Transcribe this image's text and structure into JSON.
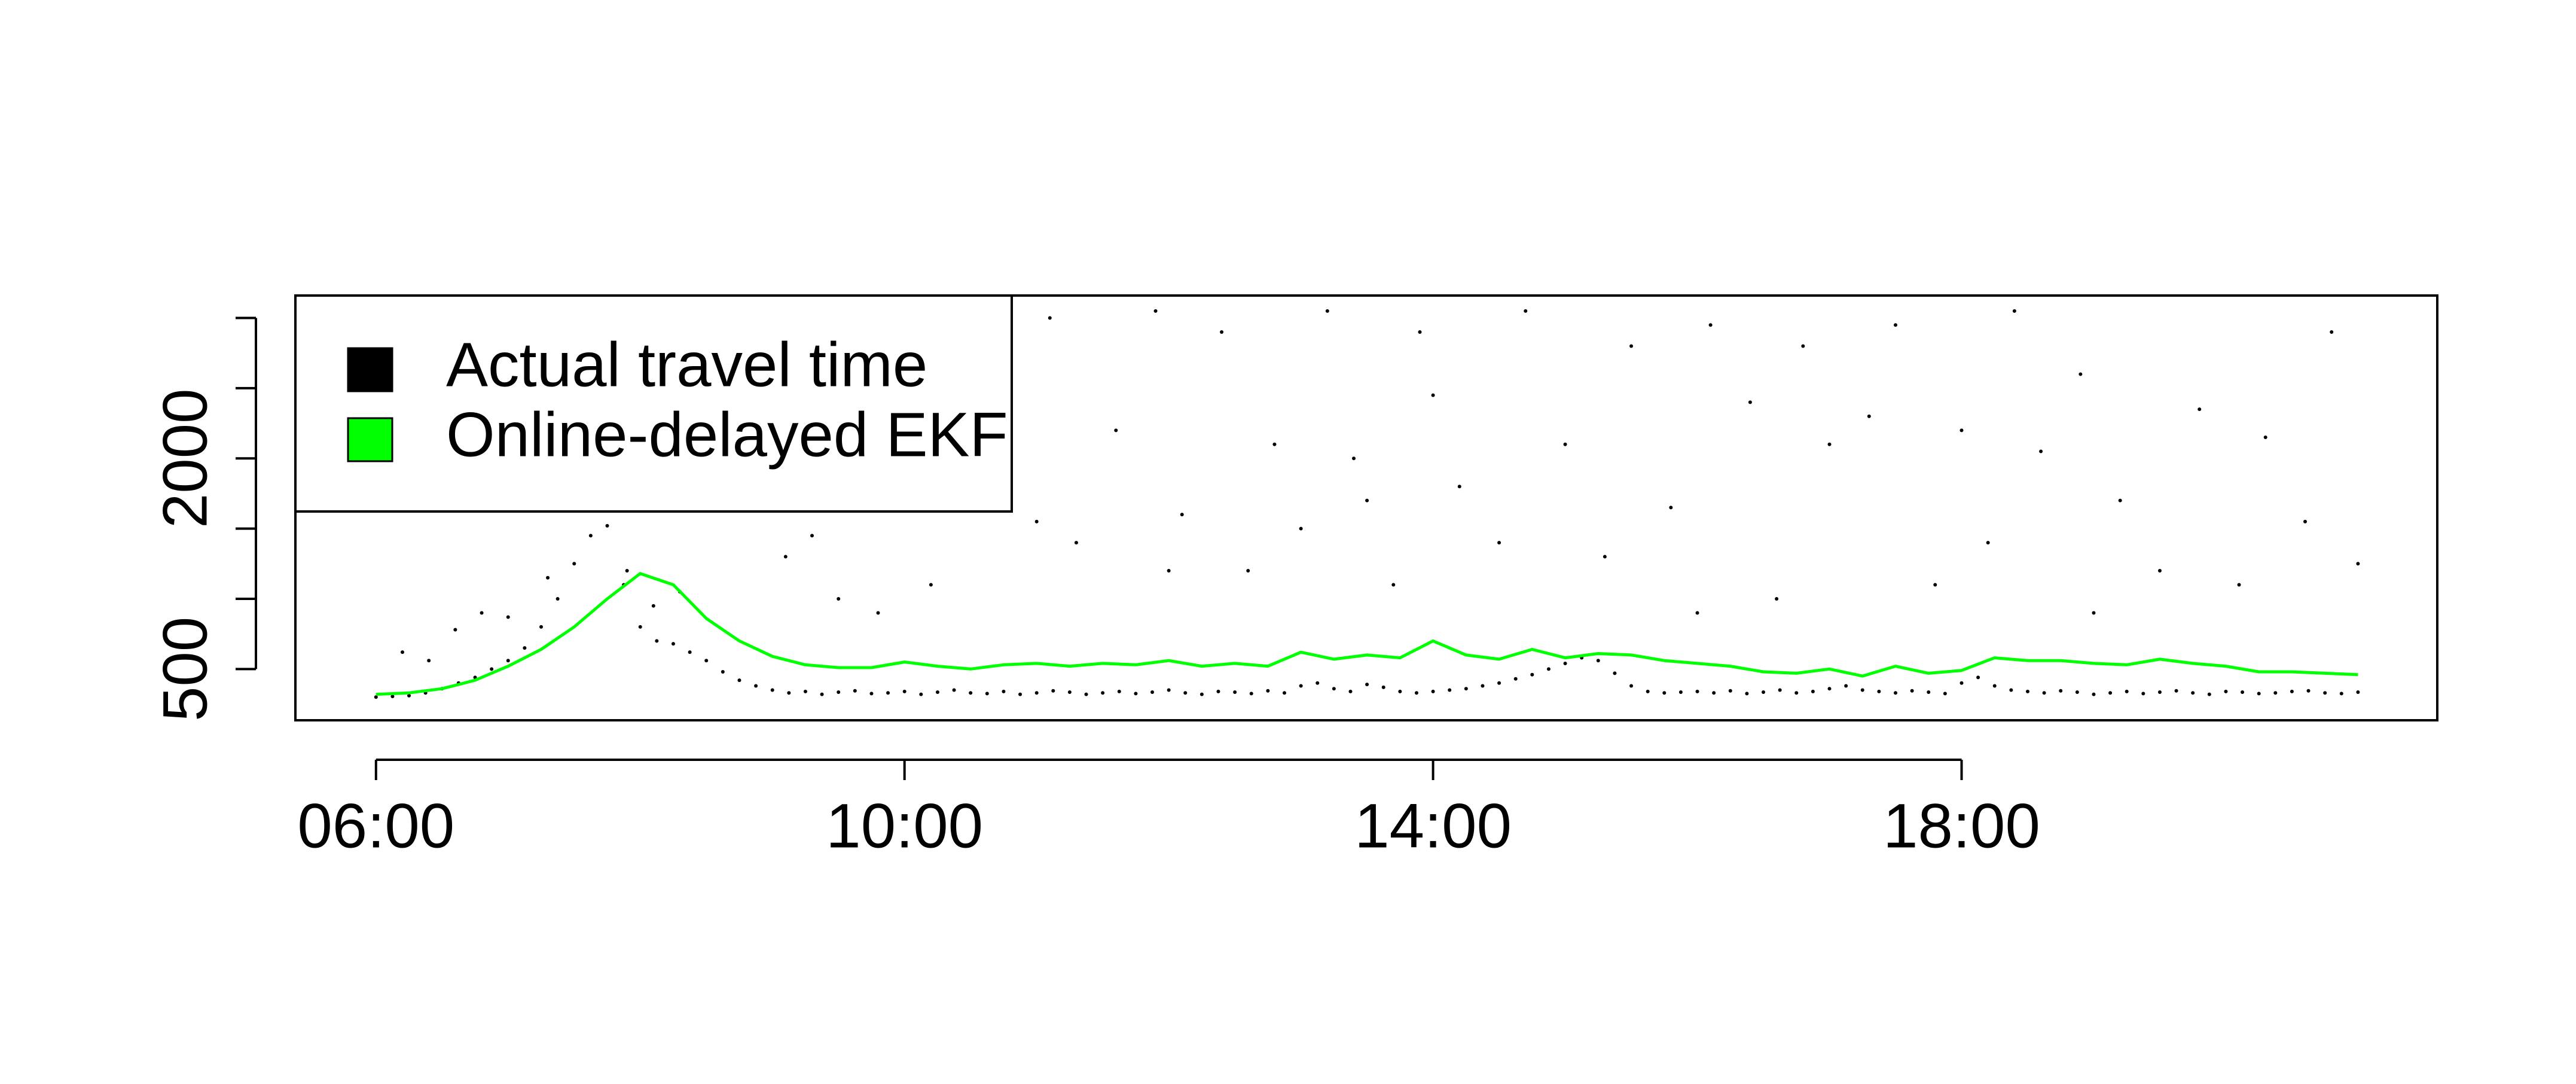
{
  "chart_data": {
    "type": "scatter_line",
    "xlim": [
      5.39,
      21.6
    ],
    "ylim": [
      135,
      3160
    ],
    "xticks": [
      {
        "value": 6,
        "label": "06:00"
      },
      {
        "value": 10,
        "label": "10:00"
      },
      {
        "value": 14,
        "label": "14:00"
      },
      {
        "value": 18,
        "label": "18:00"
      }
    ],
    "yticks": [
      500,
      1000,
      1500,
      2000,
      2500,
      3000
    ],
    "legend": "topleft",
    "series": [
      {
        "name": "Actual travel time",
        "color": "#000000",
        "kind": "points",
        "x": [
          6,
          6.125,
          6.25,
          6.375,
          6.5,
          6.625,
          6.75,
          6.875,
          7,
          7.125,
          7.25,
          7.375,
          7.5,
          7.625,
          7.75,
          7.875,
          8,
          8.125,
          8.25,
          8.375,
          8.5,
          8.625,
          8.75,
          8.875,
          9,
          9.125,
          9.25,
          9.375,
          9.5,
          9.625,
          9.75,
          9.875,
          10,
          10.125,
          10.25,
          10.375,
          10.5,
          10.625,
          10.75,
          10.875,
          11,
          11.125,
          11.25,
          11.375,
          11.5,
          11.625,
          11.75,
          11.875,
          12,
          12.125,
          12.25,
          12.375,
          12.5,
          12.625,
          12.75,
          12.875,
          13,
          13.125,
          13.25,
          13.375,
          13.5,
          13.625,
          13.75,
          13.875,
          14,
          14.125,
          14.25,
          14.375,
          14.5,
          14.625,
          14.75,
          14.875,
          15,
          15.125,
          15.25,
          15.375,
          15.5,
          15.625,
          15.75,
          15.875,
          16,
          16.125,
          16.25,
          16.375,
          16.5,
          16.625,
          16.75,
          16.875,
          17,
          17.125,
          17.25,
          17.375,
          17.5,
          17.625,
          17.75,
          17.875,
          18,
          18.125,
          18.25,
          18.375,
          18.5,
          18.625,
          18.75,
          18.875,
          19,
          19.125,
          19.25,
          19.375,
          19.5,
          19.625,
          19.75,
          19.875,
          20,
          20.125,
          20.25,
          20.375,
          20.5,
          20.625,
          20.75,
          20.875,
          21,
          6.2,
          6.4,
          6.6,
          6.8,
          7.0,
          7.3,
          7.6,
          7.9,
          8.1,
          8.3,
          8.4,
          8.6,
          8.8,
          9.1,
          9.3,
          9.6,
          9.8,
          10.2,
          10.4,
          10.6,
          10.8,
          11.1,
          11.3,
          11.6,
          11.9,
          12.1,
          12.4,
          12.6,
          12.8,
          13.0,
          13.2,
          13.4,
          13.5,
          13.7,
          13.9,
          14.0,
          14.2,
          14.5,
          14.7,
          15.0,
          15.3,
          15.5,
          15.8,
          16.1,
          16.4,
          16.6,
          16.8,
          17.0,
          17.3,
          17.5,
          17.8,
          18.0,
          18.2,
          18.4,
          18.6,
          18.9,
          19.2,
          19.5,
          19.8,
          20.1,
          20.3,
          20.6,
          20.8,
          21.0,
          9.5,
          11.0,
          12.0,
          16.0,
          19.0
        ],
        "values": [
          300,
          305,
          310,
          330,
          360,
          400,
          440,
          500,
          560,
          650,
          800,
          1000,
          1250,
          1450,
          1520,
          1100,
          800,
          700,
          680,
          620,
          560,
          480,
          420,
          380,
          350,
          330,
          340,
          320,
          335,
          345,
          325,
          330,
          340,
          320,
          335,
          350,
          330,
          325,
          340,
          320,
          330,
          345,
          335,
          320,
          330,
          340,
          325,
          335,
          350,
          330,
          320,
          340,
          335,
          325,
          345,
          330,
          380,
          400,
          360,
          340,
          390,
          370,
          340,
          330,
          340,
          350,
          360,
          380,
          400,
          430,
          460,
          500,
          540,
          580,
          560,
          470,
          380,
          340,
          330,
          335,
          340,
          330,
          345,
          325,
          335,
          350,
          330,
          340,
          360,
          380,
          350,
          340,
          330,
          345,
          335,
          325,
          400,
          440,
          380,
          350,
          340,
          330,
          345,
          335,
          320,
          330,
          340,
          325,
          335,
          345,
          330,
          320,
          340,
          335,
          325,
          330,
          340,
          345,
          330,
          325,
          335,
          620,
          560,
          780,
          900,
          870,
          1150,
          1700,
          1200,
          950,
          1050,
          1800,
          2500,
          1650,
          1300,
          1450,
          2300,
          900,
          1100,
          1900,
          2500,
          2900,
          3000,
          1400,
          2200,
          3050,
          1600,
          2900,
          1200,
          2100,
          1500,
          3050,
          2000,
          1700,
          1100,
          2900,
          2450,
          1800,
          1400,
          3050,
          2100,
          1300,
          2800,
          1650,
          2950,
          2400,
          1000,
          2800,
          2100,
          2300,
          2950,
          1100,
          2200,
          1400,
          3050,
          2050,
          2600,
          1700,
          1200,
          2350,
          1100,
          2150,
          1550,
          2900,
          1250,
          1000,
          1550,
          1200,
          900,
          900
        ]
      },
      {
        "name": "Online-delayed EKF",
        "color": "#00ff00",
        "kind": "line",
        "x": [
          6,
          6.25,
          6.5,
          6.75,
          7,
          7.25,
          7.5,
          7.75,
          8,
          8.25,
          8.5,
          8.75,
          9,
          9.25,
          9.5,
          9.75,
          10,
          10.25,
          10.5,
          10.75,
          11,
          11.25,
          11.5,
          11.75,
          12,
          12.25,
          12.5,
          12.75,
          13,
          13.25,
          13.5,
          13.75,
          14,
          14.25,
          14.5,
          14.75,
          15,
          15.25,
          15.5,
          15.75,
          16,
          16.25,
          16.5,
          16.75,
          17,
          17.25,
          17.5,
          17.75,
          18,
          18.25,
          18.5,
          18.75,
          19,
          19.25,
          19.5,
          19.75,
          20,
          20.25,
          20.5,
          20.75,
          21
        ],
        "values": [
          320,
          330,
          360,
          420,
          520,
          640,
          800,
          1000,
          1180,
          1100,
          860,
          700,
          590,
          530,
          510,
          510,
          550,
          520,
          500,
          530,
          540,
          520,
          540,
          530,
          560,
          520,
          540,
          520,
          620,
          570,
          600,
          580,
          700,
          600,
          570,
          640,
          580,
          610,
          600,
          560,
          540,
          520,
          480,
          470,
          500,
          450,
          520,
          470,
          490,
          580,
          560,
          560,
          540,
          530,
          570,
          540,
          520,
          480,
          480,
          470,
          460
        ]
      }
    ]
  }
}
